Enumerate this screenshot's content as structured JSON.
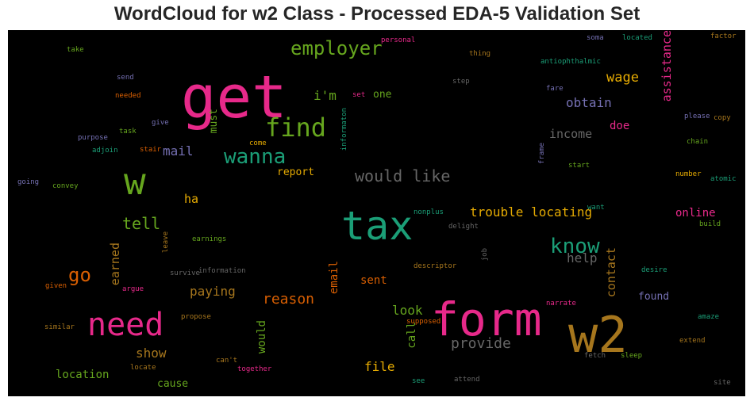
{
  "chart_data": {
    "type": "wordcloud",
    "title": "WordCloud for w2 Class - Processed EDA-5 Validation Set",
    "background": "#000000",
    "palette": [
      "#e7298a",
      "#1b9e77",
      "#66a61e",
      "#d95f02",
      "#7570b3",
      "#e6ab02",
      "#a6761d",
      "#666666"
    ],
    "words": [
      {
        "text": "get",
        "color": "#e7298a",
        "vertical": false
      },
      {
        "text": "tax",
        "color": "#1b9e77",
        "vertical": false
      },
      {
        "text": "form",
        "color": "#e7298a",
        "vertical": false
      },
      {
        "text": "w2",
        "color": "#a6761d",
        "vertical": false
      },
      {
        "text": "w",
        "color": "#66a61e",
        "vertical": false
      },
      {
        "text": "need",
        "color": "#e7298a",
        "vertical": false
      },
      {
        "text": "find",
        "color": "#66a61e",
        "vertical": false
      },
      {
        "text": "wanna",
        "color": "#1b9e77",
        "vertical": false
      },
      {
        "text": "employer",
        "color": "#66a61e",
        "vertical": false
      },
      {
        "text": "know",
        "color": "#1b9e77",
        "vertical": false
      },
      {
        "text": "would like",
        "color": "#666666",
        "vertical": false
      },
      {
        "text": "go",
        "color": "#d95f02",
        "vertical": false
      },
      {
        "text": "trouble locating",
        "color": "#e6ab02",
        "vertical": false
      },
      {
        "text": "reason",
        "color": "#d95f02",
        "vertical": false
      },
      {
        "text": "tell",
        "color": "#66a61e",
        "vertical": false
      },
      {
        "text": "provide",
        "color": "#666666",
        "vertical": false
      },
      {
        "text": "help",
        "color": "#666666",
        "vertical": false
      },
      {
        "text": "wage",
        "color": "#e6ab02",
        "vertical": false
      },
      {
        "text": "obtain",
        "color": "#7570b3",
        "vertical": false
      },
      {
        "text": "i'm",
        "color": "#66a61e",
        "vertical": false
      },
      {
        "text": "mail",
        "color": "#7570b3",
        "vertical": false
      },
      {
        "text": "income",
        "color": "#666666",
        "vertical": false
      },
      {
        "text": "online",
        "color": "#e7298a",
        "vertical": false
      },
      {
        "text": "paying",
        "color": "#a6761d",
        "vertical": false
      },
      {
        "text": "show",
        "color": "#a6761d",
        "vertical": false
      },
      {
        "text": "look",
        "color": "#66a61e",
        "vertical": false
      },
      {
        "text": "file",
        "color": "#e6ab02",
        "vertical": false
      },
      {
        "text": "location",
        "color": "#66a61e",
        "vertical": false
      },
      {
        "text": "report",
        "color": "#e6ab02",
        "vertical": false
      },
      {
        "text": "ha",
        "color": "#e6ab02",
        "vertical": false
      },
      {
        "text": "sent",
        "color": "#d95f02",
        "vertical": false
      },
      {
        "text": "found",
        "color": "#7570b3",
        "vertical": false
      },
      {
        "text": "doe",
        "color": "#e7298a",
        "vertical": false
      },
      {
        "text": "one",
        "color": "#66a61e",
        "vertical": false
      },
      {
        "text": "cause",
        "color": "#66a61e",
        "vertical": false
      },
      {
        "text": "assistance",
        "color": "#e7298a",
        "vertical": true
      },
      {
        "text": "earned",
        "color": "#a6761d",
        "vertical": true
      },
      {
        "text": "contact",
        "color": "#a6761d",
        "vertical": true
      },
      {
        "text": "email",
        "color": "#d95f02",
        "vertical": true
      },
      {
        "text": "would",
        "color": "#66a61e",
        "vertical": true
      },
      {
        "text": "call",
        "color": "#66a61e",
        "vertical": true
      },
      {
        "text": "must",
        "color": "#66a61e",
        "vertical": true
      },
      {
        "text": "personal",
        "color": "#e7298a",
        "vertical": false
      },
      {
        "text": "take",
        "color": "#66a61e",
        "vertical": false
      },
      {
        "text": "send",
        "color": "#7570b3",
        "vertical": false
      },
      {
        "text": "needed",
        "color": "#d95f02",
        "vertical": false
      },
      {
        "text": "give",
        "color": "#7570b3",
        "vertical": false
      },
      {
        "text": "task",
        "color": "#66a61e",
        "vertical": false
      },
      {
        "text": "purpose",
        "color": "#7570b3",
        "vertical": false
      },
      {
        "text": "stair",
        "color": "#d95f02",
        "vertical": false
      },
      {
        "text": "adjoin",
        "color": "#1b9e77",
        "vertical": false
      },
      {
        "text": "come",
        "color": "#e6ab02",
        "vertical": false
      },
      {
        "text": "going",
        "color": "#7570b3",
        "vertical": false
      },
      {
        "text": "convey",
        "color": "#66a61e",
        "vertical": false
      },
      {
        "text": "thing",
        "color": "#a6761d",
        "vertical": false
      },
      {
        "text": "step",
        "color": "#666666",
        "vertical": false
      },
      {
        "text": "set",
        "color": "#e7298a",
        "vertical": false
      },
      {
        "text": "antiophthalmic",
        "color": "#1b9e77",
        "vertical": false
      },
      {
        "text": "soma",
        "color": "#7570b3",
        "vertical": false
      },
      {
        "text": "located",
        "color": "#1b9e77",
        "vertical": false
      },
      {
        "text": "factor",
        "color": "#a6761d",
        "vertical": false
      },
      {
        "text": "fare",
        "color": "#7570b3",
        "vertical": false
      },
      {
        "text": "please",
        "color": "#7570b3",
        "vertical": false
      },
      {
        "text": "copy",
        "color": "#a6761d",
        "vertical": false
      },
      {
        "text": "chain",
        "color": "#66a61e",
        "vertical": false
      },
      {
        "text": "start",
        "color": "#66a61e",
        "vertical": false
      },
      {
        "text": "number",
        "color": "#e6ab02",
        "vertical": false
      },
      {
        "text": "atomic",
        "color": "#1b9e77",
        "vertical": false
      },
      {
        "text": "want",
        "color": "#1b9e77",
        "vertical": false
      },
      {
        "text": "build",
        "color": "#66a61e",
        "vertical": false
      },
      {
        "text": "nonplus",
        "color": "#1b9e77",
        "vertical": false
      },
      {
        "text": "delight",
        "color": "#666666",
        "vertical": false
      },
      {
        "text": "earnings",
        "color": "#66a61e",
        "vertical": false
      },
      {
        "text": "information",
        "color": "#666666",
        "vertical": false
      },
      {
        "text": "survive",
        "color": "#666666",
        "vertical": false
      },
      {
        "text": "given",
        "color": "#d95f02",
        "vertical": false
      },
      {
        "text": "argue",
        "color": "#e7298a",
        "vertical": false
      },
      {
        "text": "descriptor",
        "color": "#a6761d",
        "vertical": false
      },
      {
        "text": "desire",
        "color": "#1b9e77",
        "vertical": false
      },
      {
        "text": "narrate",
        "color": "#e7298a",
        "vertical": false
      },
      {
        "text": "propose",
        "color": "#a6761d",
        "vertical": false
      },
      {
        "text": "supposed",
        "color": "#d95f02",
        "vertical": false
      },
      {
        "text": "amaze",
        "color": "#1b9e77",
        "vertical": false
      },
      {
        "text": "similar",
        "color": "#a6761d",
        "vertical": false
      },
      {
        "text": "extend",
        "color": "#a6761d",
        "vertical": false
      },
      {
        "text": "can't",
        "color": "#a6761d",
        "vertical": false
      },
      {
        "text": "locate",
        "color": "#a6761d",
        "vertical": false
      },
      {
        "text": "together",
        "color": "#e7298a",
        "vertical": false
      },
      {
        "text": "fetch",
        "color": "#666666",
        "vertical": false
      },
      {
        "text": "sleep",
        "color": "#66a61e",
        "vertical": false
      },
      {
        "text": "see",
        "color": "#1b9e77",
        "vertical": false
      },
      {
        "text": "attend",
        "color": "#666666",
        "vertical": false
      },
      {
        "text": "site",
        "color": "#666666",
        "vertical": false
      },
      {
        "text": "informaton",
        "color": "#1b9e77",
        "vertical": true
      },
      {
        "text": "frame",
        "color": "#7570b3",
        "vertical": true
      },
      {
        "text": "leave",
        "color": "#a6761d",
        "vertical": true
      },
      {
        "text": "job",
        "color": "#666666",
        "vertical": true
      }
    ]
  }
}
